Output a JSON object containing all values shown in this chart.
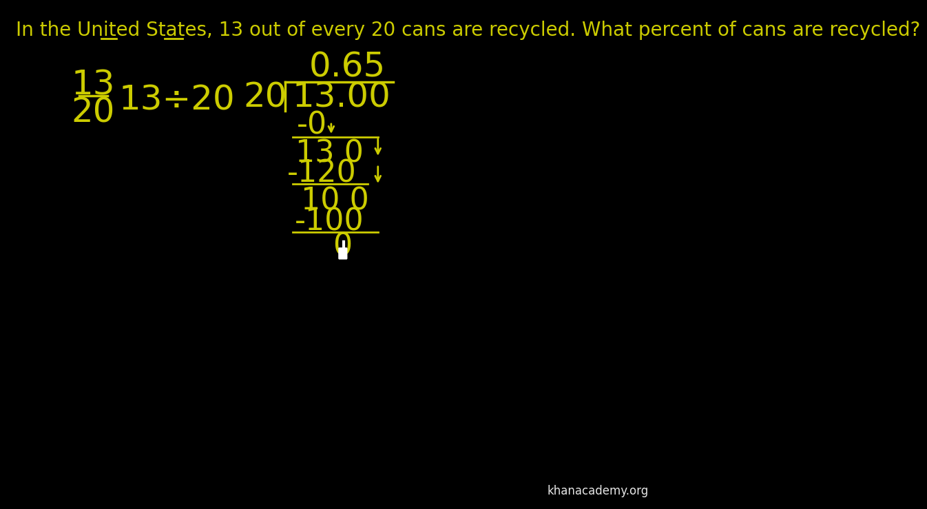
{
  "background_color": "#000000",
  "text_color": "#cccc00",
  "white_color": "#ffffff",
  "title_text": "In the United States, 13 out of every 20 cans are recycled. What percent of cans are recycled?",
  "fraction_num": "13",
  "fraction_den": "20",
  "division_text": "13÷20",
  "quotient": "0.65",
  "divisor": "20",
  "dividend": "13.00",
  "step1_sub": "-0",
  "step1_res": "13 0",
  "step2_sub": "-120",
  "step2_res": "10 0",
  "step3_sub": "-100",
  "step3_res": "0",
  "khan_text": "khanacademy.org",
  "title_fontsize": 20,
  "math_fontsize": 32
}
